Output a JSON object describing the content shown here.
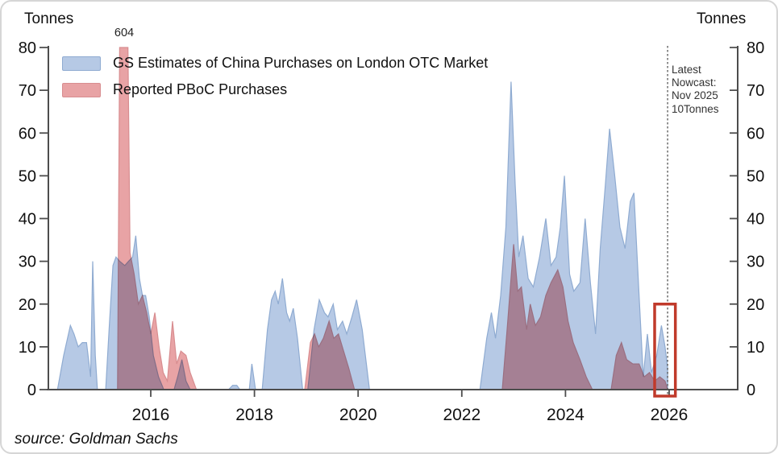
{
  "figure": {
    "axis_title_left": "Tonnes",
    "axis_title_right": "Tonnes",
    "source_text": "source: Goldman Sachs",
    "spike_label": "604",
    "nowcast_annotation": "Latest\nNowcast:\nNov 2025\n10Tonnes"
  },
  "legend": {
    "items": [
      {
        "label": "GS Estimates of China Purchases on London OTC Market",
        "swatch_fill": "#b6c9e5",
        "swatch_border": "#8fabd1"
      },
      {
        "label": "Reported PBoC Purchases",
        "swatch_fill": "#e8a3a5",
        "swatch_border": "#d88d90"
      }
    ]
  },
  "chart_data": {
    "type": "area",
    "title": "",
    "unit": "Tonnes",
    "xlim": [
      2014.0,
      2027.3
    ],
    "ylim": [
      0,
      80
    ],
    "x_ticks": [
      "2016",
      "2018",
      "2020",
      "2022",
      "2024",
      "2026"
    ],
    "x_tick_years": [
      2016,
      2018,
      2020,
      2022,
      2024,
      2026
    ],
    "y_ticks": [
      0,
      10,
      20,
      30,
      40,
      50,
      60,
      70,
      80
    ],
    "y_axis_sides": "both",
    "grid": false,
    "display_cap": 80,
    "series": [
      {
        "name": "GS Estimates of China Purchases on London OTC Market",
        "fill": "#b6c9e5",
        "stroke": "#8fabd1",
        "points": [
          [
            2014.2,
            0
          ],
          [
            2014.32,
            8
          ],
          [
            2014.45,
            15
          ],
          [
            2014.52,
            13
          ],
          [
            2014.6,
            10
          ],
          [
            2014.68,
            11
          ],
          [
            2014.76,
            11
          ],
          [
            2014.84,
            3
          ],
          [
            2014.88,
            30
          ],
          [
            2014.93,
            8
          ],
          [
            2014.97,
            0
          ],
          [
            2015.13,
            0
          ],
          [
            2015.2,
            15
          ],
          [
            2015.27,
            29
          ],
          [
            2015.33,
            31
          ],
          [
            2015.4,
            30
          ],
          [
            2015.5,
            29
          ],
          [
            2015.57,
            30
          ],
          [
            2015.65,
            31
          ],
          [
            2015.71,
            36
          ],
          [
            2015.78,
            26
          ],
          [
            2015.84,
            22
          ],
          [
            2015.9,
            22
          ],
          [
            2015.97,
            17
          ],
          [
            2016.05,
            8
          ],
          [
            2016.15,
            3
          ],
          [
            2016.25,
            0
          ],
          [
            2016.45,
            0
          ],
          [
            2016.52,
            3
          ],
          [
            2016.6,
            7
          ],
          [
            2016.68,
            2
          ],
          [
            2016.76,
            0
          ],
          [
            2017.5,
            0
          ],
          [
            2017.58,
            1
          ],
          [
            2017.66,
            1
          ],
          [
            2017.72,
            0
          ],
          [
            2017.9,
            0
          ],
          [
            2017.95,
            6
          ],
          [
            2018.02,
            0
          ],
          [
            2018.15,
            0
          ],
          [
            2018.25,
            14
          ],
          [
            2018.33,
            21
          ],
          [
            2018.4,
            23
          ],
          [
            2018.46,
            20
          ],
          [
            2018.54,
            26
          ],
          [
            2018.62,
            18
          ],
          [
            2018.68,
            16
          ],
          [
            2018.75,
            19
          ],
          [
            2018.83,
            12
          ],
          [
            2018.93,
            0
          ],
          [
            2019.03,
            0
          ],
          [
            2019.15,
            14
          ],
          [
            2019.25,
            21
          ],
          [
            2019.35,
            18
          ],
          [
            2019.42,
            17
          ],
          [
            2019.52,
            20
          ],
          [
            2019.6,
            14
          ],
          [
            2019.7,
            16
          ],
          [
            2019.78,
            13
          ],
          [
            2019.88,
            17
          ],
          [
            2019.97,
            21
          ],
          [
            2020.08,
            14
          ],
          [
            2020.22,
            0
          ],
          [
            2022.35,
            0
          ],
          [
            2022.48,
            12
          ],
          [
            2022.57,
            18
          ],
          [
            2022.65,
            12
          ],
          [
            2022.75,
            22
          ],
          [
            2022.85,
            38
          ],
          [
            2022.95,
            72
          ],
          [
            2023.03,
            48
          ],
          [
            2023.1,
            31
          ],
          [
            2023.18,
            36
          ],
          [
            2023.28,
            26
          ],
          [
            2023.38,
            24
          ],
          [
            2023.5,
            31
          ],
          [
            2023.62,
            40
          ],
          [
            2023.72,
            29
          ],
          [
            2023.82,
            31
          ],
          [
            2023.9,
            38
          ],
          [
            2023.98,
            50
          ],
          [
            2024.08,
            27
          ],
          [
            2024.16,
            23
          ],
          [
            2024.28,
            25
          ],
          [
            2024.38,
            40
          ],
          [
            2024.48,
            25
          ],
          [
            2024.58,
            13
          ],
          [
            2024.67,
            33
          ],
          [
            2024.77,
            48
          ],
          [
            2024.85,
            61
          ],
          [
            2024.95,
            50
          ],
          [
            2025.05,
            38
          ],
          [
            2025.15,
            33
          ],
          [
            2025.25,
            44
          ],
          [
            2025.32,
            46
          ],
          [
            2025.42,
            22
          ],
          [
            2025.5,
            3
          ],
          [
            2025.58,
            13
          ],
          [
            2025.66,
            4
          ],
          [
            2025.76,
            8
          ],
          [
            2025.85,
            15
          ],
          [
            2025.92,
            10
          ],
          [
            2025.97,
            5
          ]
        ]
      },
      {
        "name": "Reported PBoC Purchases",
        "fill": "#e8a3a5",
        "stroke": "#d88d90",
        "blend": "multiply",
        "points": [
          [
            2015.36,
            0
          ],
          [
            2015.4,
            604
          ],
          [
            2015.56,
            604
          ],
          [
            2015.6,
            32
          ],
          [
            2015.68,
            27
          ],
          [
            2015.76,
            20
          ],
          [
            2015.84,
            22
          ],
          [
            2015.92,
            18
          ],
          [
            2016.0,
            13
          ],
          [
            2016.08,
            18
          ],
          [
            2016.16,
            10
          ],
          [
            2016.24,
            4
          ],
          [
            2016.32,
            2
          ],
          [
            2016.42,
            16
          ],
          [
            2016.5,
            6
          ],
          [
            2016.58,
            9
          ],
          [
            2016.68,
            8
          ],
          [
            2016.76,
            4
          ],
          [
            2016.88,
            0
          ],
          [
            2018.97,
            0
          ],
          [
            2019.08,
            11
          ],
          [
            2019.16,
            13
          ],
          [
            2019.24,
            10
          ],
          [
            2019.33,
            12
          ],
          [
            2019.44,
            16
          ],
          [
            2019.53,
            12
          ],
          [
            2019.62,
            13
          ],
          [
            2019.72,
            9
          ],
          [
            2019.82,
            5
          ],
          [
            2019.93,
            0
          ],
          [
            2022.78,
            0
          ],
          [
            2022.88,
            15
          ],
          [
            2023.0,
            34
          ],
          [
            2023.08,
            23
          ],
          [
            2023.15,
            24
          ],
          [
            2023.25,
            14
          ],
          [
            2023.32,
            20
          ],
          [
            2023.42,
            15
          ],
          [
            2023.52,
            17
          ],
          [
            2023.62,
            22
          ],
          [
            2023.72,
            25
          ],
          [
            2023.85,
            28
          ],
          [
            2023.95,
            24
          ],
          [
            2024.05,
            16
          ],
          [
            2024.15,
            11
          ],
          [
            2024.28,
            7
          ],
          [
            2024.4,
            3
          ],
          [
            2024.52,
            0
          ],
          [
            2024.88,
            0
          ],
          [
            2024.98,
            8
          ],
          [
            2025.08,
            11
          ],
          [
            2025.18,
            7
          ],
          [
            2025.3,
            6
          ],
          [
            2025.42,
            6
          ],
          [
            2025.52,
            3
          ],
          [
            2025.62,
            4
          ],
          [
            2025.72,
            2
          ],
          [
            2025.82,
            3
          ],
          [
            2025.92,
            2
          ],
          [
            2025.97,
            0
          ]
        ]
      }
    ],
    "annotations": {
      "spike_label": {
        "text": "604",
        "x": 2015.48,
        "value": 604
      },
      "nowcast_line": {
        "x": 2025.97,
        "style": "dashed"
      },
      "nowcast_text": "Latest Nowcast: Nov 2025 10Tonnes",
      "highlight_box": {
        "x_start": 2025.72,
        "x_end": 2026.12,
        "y_start": 0,
        "y_end": 20,
        "stroke": "#c03a2b"
      }
    },
    "source": "source: Goldman Sachs"
  }
}
